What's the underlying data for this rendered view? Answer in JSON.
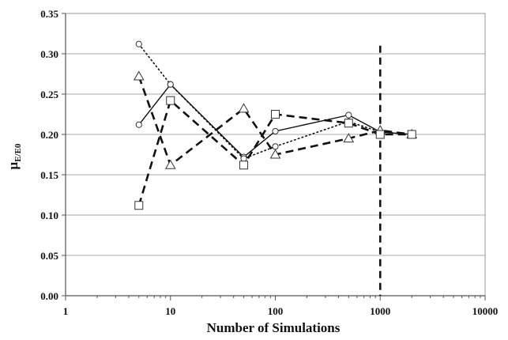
{
  "chart_data": {
    "type": "line",
    "title": "",
    "xlabel": "Number of Simulations",
    "ylabel": "μ",
    "ylabel_subscript": "E/E0",
    "x_scale": "log",
    "xlim": [
      1,
      10000
    ],
    "ylim": [
      0,
      0.35
    ],
    "x_ticks": [
      1,
      10,
      100,
      1000,
      10000
    ],
    "x_tick_labels": [
      "1",
      "10",
      "100",
      "1000",
      "10000"
    ],
    "y_ticks": [
      0,
      0.05,
      0.1,
      0.15,
      0.2,
      0.25,
      0.3,
      0.35
    ],
    "y_tick_labels": [
      "0.00",
      "0.05",
      "0.10",
      "0.15",
      "0.20",
      "0.25",
      "0.30",
      "0.35"
    ],
    "grid": "horizontal",
    "legend": "none",
    "reference_line": {
      "x": 1000,
      "style": "dashed"
    },
    "series": [
      {
        "marker": "circle",
        "line_style": "solid",
        "x": [
          5,
          10,
          50,
          100,
          500,
          1000,
          2000
        ],
        "y": [
          0.212,
          0.262,
          0.172,
          0.204,
          0.224,
          0.203,
          0.2
        ]
      },
      {
        "marker": "circle",
        "line_style": "dotted",
        "x": [
          5,
          10,
          50,
          100,
          500,
          1000,
          2000
        ],
        "y": [
          0.312,
          0.262,
          0.17,
          0.185,
          0.216,
          0.203,
          0.2
        ]
      },
      {
        "marker": "triangle",
        "line_style": "dashed",
        "x": [
          5,
          10,
          50,
          100,
          500,
          1000,
          2000
        ],
        "y": [
          0.272,
          0.162,
          0.232,
          0.175,
          0.195,
          0.205,
          0.2
        ]
      },
      {
        "marker": "square",
        "line_style": "dashed",
        "x": [
          5,
          10,
          50,
          100,
          500,
          1000,
          2000
        ],
        "y": [
          0.112,
          0.242,
          0.162,
          0.225,
          0.214,
          0.2,
          0.2
        ]
      }
    ]
  }
}
